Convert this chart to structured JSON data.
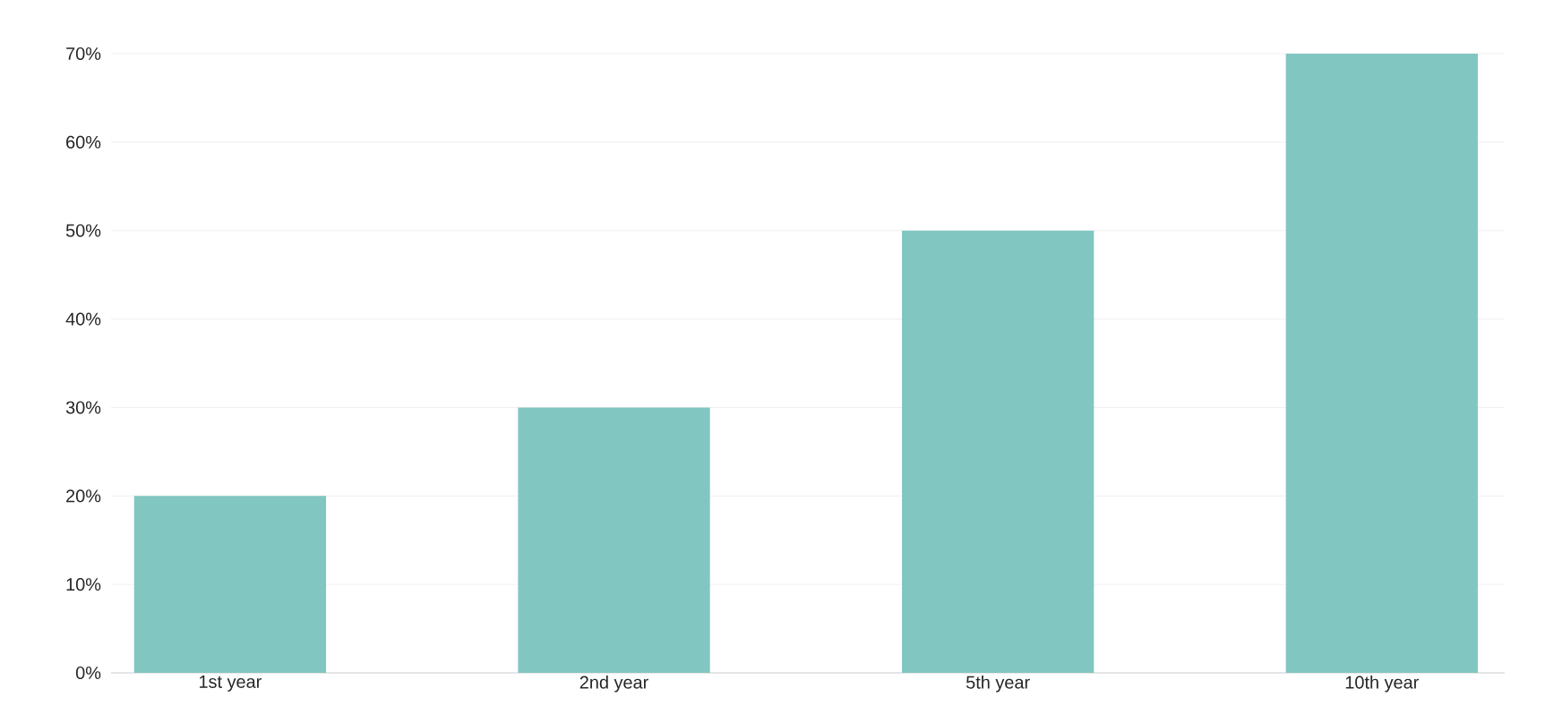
{
  "chart_data": {
    "type": "bar",
    "categories": [
      "1st year",
      "2nd year",
      "5th year",
      "10th year"
    ],
    "values": [
      20,
      30,
      50,
      70
    ],
    "color": "#82c6c2",
    "ylim": [
      0,
      70
    ],
    "yticks": [
      {
        "value": 0,
        "label": "0%"
      },
      {
        "value": 10,
        "label": "10%"
      },
      {
        "value": 20,
        "label": "20%"
      },
      {
        "value": 30,
        "label": "30%"
      },
      {
        "value": 40,
        "label": "40%"
      },
      {
        "value": 50,
        "label": "50%"
      },
      {
        "value": 60,
        "label": "60%"
      },
      {
        "value": 70,
        "label": "70%"
      }
    ],
    "grid": "y"
  }
}
